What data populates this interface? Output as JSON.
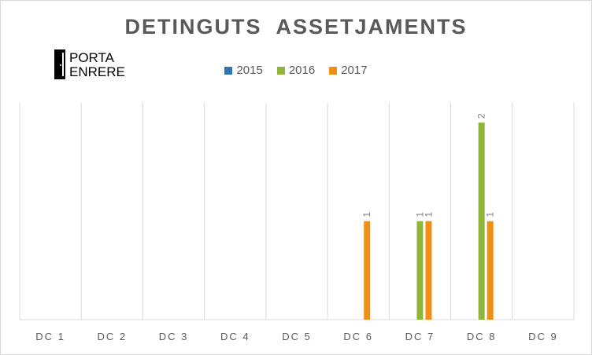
{
  "chart_data": {
    "type": "bar",
    "title": "DETINGUTS  ASSETJAMENTS",
    "categories": [
      "DC 1",
      "DC 2",
      "DC 3",
      "DC 4",
      "DC 5",
      "DC 6",
      "DC 7",
      "DC 8",
      "DC 9"
    ],
    "series": [
      {
        "name": "2015",
        "color": "#2e75b6",
        "values": [
          0,
          0,
          0,
          0,
          0,
          0,
          0,
          0,
          0
        ]
      },
      {
        "name": "2016",
        "color": "#8fb53a",
        "values": [
          0,
          0,
          0,
          0,
          0,
          0,
          1,
          2,
          0
        ]
      },
      {
        "name": "2017",
        "color": "#f18f12",
        "values": [
          0,
          0,
          0,
          0,
          0,
          1,
          1,
          1,
          0
        ]
      }
    ],
    "ylim": [
      0,
      2.2
    ],
    "legend": "top",
    "grid": "vertical category separators"
  },
  "logo": {
    "line1": "PORTA",
    "line2": "ENRERE",
    "icon": "door-icon"
  }
}
